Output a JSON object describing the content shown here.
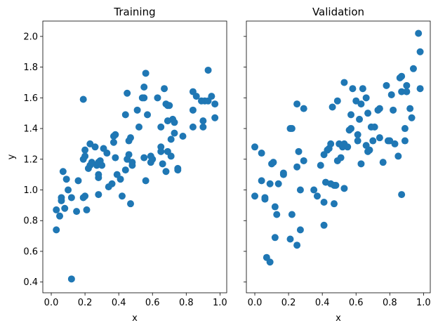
{
  "chart_data": [
    {
      "type": "scatter",
      "title": "Training",
      "xlabel": "x",
      "ylabel": "y",
      "xlim": [
        -0.05,
        1.04
      ],
      "ylim": [
        0.33,
        2.1
      ],
      "xticks": [
        "0.0",
        "0.2",
        "0.4",
        "0.6",
        "0.8",
        "1.0"
      ],
      "yticks": [
        "0.4",
        "0.6",
        "0.8",
        "1.0",
        "1.2",
        "1.4",
        "1.6",
        "1.8",
        "2.0"
      ],
      "color": "#1f77b4",
      "points": [
        [
          0.03,
          0.87
        ],
        [
          0.03,
          0.74
        ],
        [
          0.05,
          0.83
        ],
        [
          0.07,
          1.12
        ],
        [
          0.06,
          0.95
        ],
        [
          0.06,
          0.93
        ],
        [
          0.08,
          0.88
        ],
        [
          0.09,
          1.07
        ],
        [
          0.1,
          1.0
        ],
        [
          0.12,
          0.95
        ],
        [
          0.12,
          0.42
        ],
        [
          0.16,
          1.06
        ],
        [
          0.15,
          0.86
        ],
        [
          0.19,
          1.59
        ],
        [
          0.2,
          1.26
        ],
        [
          0.2,
          1.22
        ],
        [
          0.19,
          1.2
        ],
        [
          0.19,
          0.95
        ],
        [
          0.2,
          0.96
        ],
        [
          0.21,
          0.87
        ],
        [
          0.22,
          1.14
        ],
        [
          0.23,
          1.16
        ],
        [
          0.23,
          1.3
        ],
        [
          0.24,
          1.18
        ],
        [
          0.26,
          1.28
        ],
        [
          0.27,
          1.16
        ],
        [
          0.28,
          1.18
        ],
        [
          0.28,
          1.08
        ],
        [
          0.28,
          1.1
        ],
        [
          0.28,
          0.97
        ],
        [
          0.29,
          1.19
        ],
        [
          0.3,
          1.16
        ],
        [
          0.31,
          1.27
        ],
        [
          0.33,
          1.24
        ],
        [
          0.34,
          1.02
        ],
        [
          0.36,
          1.04
        ],
        [
          0.37,
          1.31
        ],
        [
          0.37,
          1.35
        ],
        [
          0.38,
          1.36
        ],
        [
          0.38,
          1.21
        ],
        [
          0.39,
          1.1
        ],
        [
          0.41,
          1.07
        ],
        [
          0.42,
          0.96
        ],
        [
          0.44,
          1.49
        ],
        [
          0.44,
          1.13
        ],
        [
          0.45,
          1.2
        ],
        [
          0.45,
          1.63
        ],
        [
          0.46,
          1.23
        ],
        [
          0.46,
          1.32
        ],
        [
          0.47,
          1.34
        ],
        [
          0.47,
          0.91
        ],
        [
          0.48,
          1.18
        ],
        [
          0.48,
          1.16
        ],
        [
          0.51,
          1.52
        ],
        [
          0.52,
          1.41
        ],
        [
          0.54,
          1.6
        ],
        [
          0.55,
          1.67
        ],
        [
          0.55,
          1.6
        ],
        [
          0.56,
          1.76
        ],
        [
          0.55,
          1.21
        ],
        [
          0.56,
          1.06
        ],
        [
          0.57,
          1.49
        ],
        [
          0.59,
          1.22
        ],
        [
          0.59,
          1.18
        ],
        [
          0.6,
          1.2
        ],
        [
          0.63,
          1.6
        ],
        [
          0.65,
          1.41
        ],
        [
          0.65,
          1.28
        ],
        [
          0.65,
          1.25
        ],
        [
          0.66,
          1.17
        ],
        [
          0.67,
          1.66
        ],
        [
          0.68,
          1.56
        ],
        [
          0.68,
          1.12
        ],
        [
          0.69,
          1.55
        ],
        [
          0.69,
          1.45
        ],
        [
          0.7,
          1.55
        ],
        [
          0.69,
          1.25
        ],
        [
          0.71,
          1.33
        ],
        [
          0.71,
          1.22
        ],
        [
          0.72,
          1.46
        ],
        [
          0.73,
          1.37
        ],
        [
          0.73,
          1.44
        ],
        [
          0.75,
          1.14
        ],
        [
          0.75,
          1.13
        ],
        [
          0.78,
          1.35
        ],
        [
          0.84,
          1.64
        ],
        [
          0.84,
          1.52
        ],
        [
          0.84,
          1.41
        ],
        [
          0.86,
          1.61
        ],
        [
          0.89,
          1.58
        ],
        [
          0.9,
          1.45
        ],
        [
          0.9,
          1.41
        ],
        [
          0.91,
          1.58
        ],
        [
          0.93,
          1.78
        ],
        [
          0.93,
          1.58
        ],
        [
          0.95,
          1.61
        ],
        [
          0.97,
          1.56
        ],
        [
          0.97,
          1.47
        ]
      ]
    },
    {
      "type": "scatter",
      "title": "Validation",
      "xlabel": "x",
      "ylabel": "",
      "xlim": [
        -0.05,
        1.04
      ],
      "ylim": [
        0.33,
        2.1
      ],
      "xticks": [
        "0.0",
        "0.2",
        "0.4",
        "0.6",
        "0.8",
        "1.0"
      ],
      "yticks": [],
      "color": "#1f77b4",
      "points": [
        [
          0.0,
          1.28
        ],
        [
          0.0,
          0.96
        ],
        [
          0.04,
          1.24
        ],
        [
          0.04,
          1.06
        ],
        [
          0.06,
          0.95
        ],
        [
          0.06,
          0.94
        ],
        [
          0.07,
          0.56
        ],
        [
          0.09,
          0.53
        ],
        [
          0.09,
          1.04
        ],
        [
          0.1,
          1.17
        ],
        [
          0.11,
          1.18
        ],
        [
          0.12,
          0.69
        ],
        [
          0.12,
          0.89
        ],
        [
          0.13,
          0.84
        ],
        [
          0.14,
          1.04
        ],
        [
          0.17,
          1.1
        ],
        [
          0.17,
          1.11
        ],
        [
          0.21,
          0.68
        ],
        [
          0.21,
          1.4
        ],
        [
          0.22,
          1.4
        ],
        [
          0.22,
          0.84
        ],
        [
          0.25,
          1.56
        ],
        [
          0.25,
          0.64
        ],
        [
          0.25,
          1.15
        ],
        [
          0.26,
          1.25
        ],
        [
          0.27,
          0.74
        ],
        [
          0.27,
          1.0
        ],
        [
          0.29,
          1.53
        ],
        [
          0.29,
          1.19
        ],
        [
          0.35,
          1.0
        ],
        [
          0.37,
          0.96
        ],
        [
          0.39,
          1.16
        ],
        [
          0.41,
          1.23
        ],
        [
          0.41,
          0.77
        ],
        [
          0.41,
          0.92
        ],
        [
          0.42,
          1.05
        ],
        [
          0.43,
          1.26
        ],
        [
          0.44,
          1.27
        ],
        [
          0.45,
          1.3
        ],
        [
          0.45,
          1.04
        ],
        [
          0.46,
          1.54
        ],
        [
          0.47,
          1.03
        ],
        [
          0.48,
          1.03
        ],
        [
          0.47,
          0.91
        ],
        [
          0.49,
          1.58
        ],
        [
          0.49,
          1.19
        ],
        [
          0.5,
          1.3
        ],
        [
          0.51,
          1.21
        ],
        [
          0.52,
          1.28
        ],
        [
          0.53,
          1.3
        ],
        [
          0.53,
          1.01
        ],
        [
          0.53,
          1.7
        ],
        [
          0.55,
          1.28
        ],
        [
          0.56,
          1.39
        ],
        [
          0.57,
          1.49
        ],
        [
          0.57,
          1.4
        ],
        [
          0.58,
          1.66
        ],
        [
          0.6,
          1.58
        ],
        [
          0.61,
          1.32
        ],
        [
          0.61,
          1.36
        ],
        [
          0.62,
          1.46
        ],
        [
          0.63,
          1.17
        ],
        [
          0.63,
          1.56
        ],
        [
          0.64,
          1.66
        ],
        [
          0.66,
          1.6
        ],
        [
          0.66,
          1.29
        ],
        [
          0.67,
          1.5
        ],
        [
          0.67,
          1.25
        ],
        [
          0.68,
          1.26
        ],
        [
          0.69,
          1.41
        ],
        [
          0.7,
          1.32
        ],
        [
          0.71,
          1.41
        ],
        [
          0.73,
          1.52
        ],
        [
          0.74,
          1.53
        ],
        [
          0.74,
          1.34
        ],
        [
          0.76,
          1.18
        ],
        [
          0.78,
          1.68
        ],
        [
          0.79,
          1.32
        ],
        [
          0.8,
          1.32
        ],
        [
          0.81,
          1.62
        ],
        [
          0.82,
          1.52
        ],
        [
          0.83,
          1.3
        ],
        [
          0.85,
          1.22
        ],
        [
          0.86,
          1.73
        ],
        [
          0.87,
          1.74
        ],
        [
          0.87,
          0.97
        ],
        [
          0.87,
          1.64
        ],
        [
          0.89,
          1.4
        ],
        [
          0.89,
          1.32
        ],
        [
          0.9,
          1.64
        ],
        [
          0.9,
          1.68
        ],
        [
          0.92,
          1.53
        ],
        [
          0.93,
          1.47
        ],
        [
          0.94,
          1.79
        ],
        [
          0.97,
          2.02
        ],
        [
          0.98,
          1.9
        ],
        [
          0.98,
          1.66
        ]
      ]
    }
  ]
}
